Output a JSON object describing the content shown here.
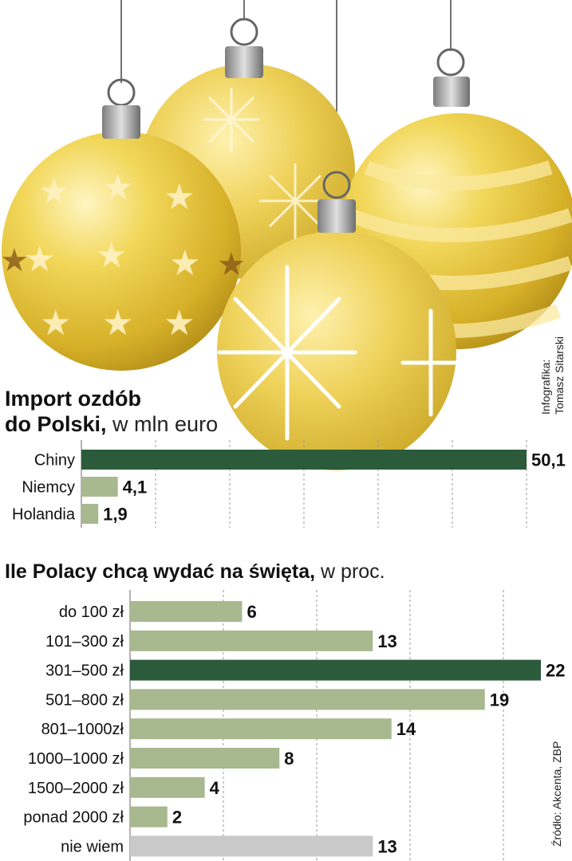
{
  "credit": {
    "label": "Infografika:",
    "author": "Tomasz Sitarski"
  },
  "source": "Źródło: Akcenta, ZBP",
  "colors": {
    "dark": "#2b5b3b",
    "light": "#a8b88f",
    "grey": "#c9c9c9",
    "gold": "#e6c84a"
  },
  "chart1": {
    "title_bold": "Import ozdób",
    "title_bold2": "do Polski,",
    "title_light": " w mln euro"
  },
  "chart2": {
    "title_bold": "Ile Polacy chcą wydać na święta,",
    "title_light": " w proc."
  },
  "chart_data": [
    {
      "type": "bar",
      "orientation": "horizontal",
      "title": "Import ozdób do Polski, w mln euro",
      "categories": [
        "Chiny",
        "Niemcy",
        "Holandia"
      ],
      "values": [
        50.1,
        4.1,
        1.9
      ],
      "labels": [
        "50,1",
        "4,1",
        "1,9"
      ],
      "colors": [
        "dark",
        "light",
        "light"
      ],
      "xlim": [
        0,
        50.1
      ],
      "grid": true
    },
    {
      "type": "bar",
      "orientation": "horizontal",
      "title": "Ile Polacy chcą wydać na święta, w proc.",
      "categories": [
        "do 100 zł",
        "101–300 zł",
        "301–500 zł",
        "501–800 zł",
        "801–1000zł",
        "1000–1000 zł",
        "1500–2000 zł",
        "ponad 2000 zł",
        "nie wiem"
      ],
      "values": [
        6,
        13,
        22,
        19,
        14,
        8,
        4,
        2,
        13
      ],
      "labels": [
        "6",
        "13",
        "22",
        "19",
        "14",
        "8",
        "4",
        "2",
        "13"
      ],
      "colors": [
        "light",
        "light",
        "dark",
        "light",
        "light",
        "light",
        "light",
        "light",
        "grey"
      ],
      "xlim": [
        0,
        22
      ],
      "grid": true
    }
  ]
}
